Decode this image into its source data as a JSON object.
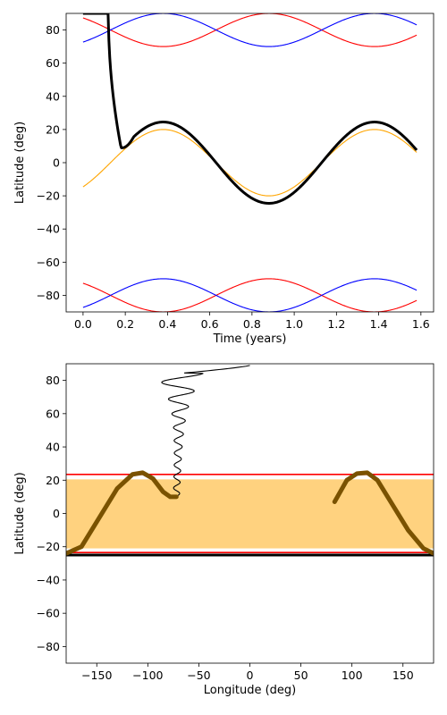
{
  "chart_data": [
    {
      "type": "line",
      "xlabel": "Time (years)",
      "ylabel": "Latitude (deg)",
      "xlim": [
        -0.08,
        1.66
      ],
      "ylim": [
        -90,
        90
      ],
      "xticks": [
        "0.0",
        "0.2",
        "0.4",
        "0.6",
        "0.8",
        "1.0",
        "1.2",
        "1.4",
        "1.6"
      ],
      "yticks": [
        "−80",
        "−60",
        "−40",
        "−20",
        "0",
        "20",
        "40",
        "60",
        "80"
      ],
      "grid": false,
      "series": [
        {
          "color": "#ffa500",
          "kind": "sinusoid",
          "amplitude": 20,
          "period": 1.0,
          "peak_x": 0.38,
          "x_range": [
            0.0,
            1.58
          ]
        },
        {
          "color": "#ff0000",
          "kind": "polar_upper_trough",
          "min": 70,
          "period": 1.0,
          "trough_x": 0.38,
          "x_range": [
            0.0,
            1.58
          ]
        },
        {
          "color": "#0000ff",
          "kind": "polar_upper_peak",
          "min": 70,
          "period": 1.0,
          "trough_x": 0.88,
          "x_range": [
            0.0,
            1.58
          ]
        },
        {
          "color": "#ff0000",
          "kind": "polar_lower_peak",
          "max": -70,
          "period": 1.0,
          "peak_x": 0.88,
          "x_range": [
            0.0,
            1.58
          ]
        },
        {
          "color": "#0000ff",
          "kind": "polar_lower_trough",
          "max": -70,
          "period": 1.0,
          "peak_x": 0.38,
          "x_range": [
            0.0,
            1.58
          ]
        },
        {
          "color": "#000000",
          "kind": "trajectory",
          "start_lat": 90,
          "drop_x": 0.12,
          "min_x": 0.18,
          "min_lat": 9,
          "amplitude": 24.5,
          "period": 1.0,
          "peak_x": 0.38,
          "x_range": [
            0.0,
            1.58
          ]
        }
      ]
    },
    {
      "type": "scatter",
      "xlabel": "Longitude (deg)",
      "ylabel": "Latitude (deg)",
      "xlim": [
        -180,
        180
      ],
      "ylim": [
        -90,
        90
      ],
      "xticks": [
        "−150",
        "−100",
        "−50",
        "0",
        "50",
        "100",
        "150"
      ],
      "yticks": [
        "−80",
        "−60",
        "−40",
        "−20",
        "0",
        "20",
        "40",
        "60",
        "80"
      ],
      "grid": false,
      "band": {
        "color": "#ffd27f",
        "y_range": [
          -21,
          20.5
        ]
      },
      "hlines": [
        {
          "y": 23.5,
          "color": "#ff0000"
        },
        {
          "y": -23.5,
          "color": "#ff0000"
        },
        {
          "y": -25,
          "color": "#000000"
        }
      ],
      "spiral": {
        "color": "#000000",
        "start": [
          0,
          89
        ],
        "end": [
          -72,
          10
        ]
      },
      "track_color": "#7a5200",
      "track_segments": [
        {
          "x": [
            -180,
            -165,
            -150,
            -130,
            -115,
            -105,
            -95,
            -85,
            -78,
            -72
          ],
          "y": [
            -24,
            -20,
            -5,
            15,
            23.5,
            24.5,
            21,
            13,
            10,
            10
          ]
        },
        {
          "x": [
            83,
            95,
            105,
            115,
            125,
            140,
            155,
            170,
            180
          ],
          "y": [
            7,
            20,
            24,
            24.5,
            20,
            5,
            -10,
            -21,
            -24
          ]
        }
      ]
    }
  ]
}
